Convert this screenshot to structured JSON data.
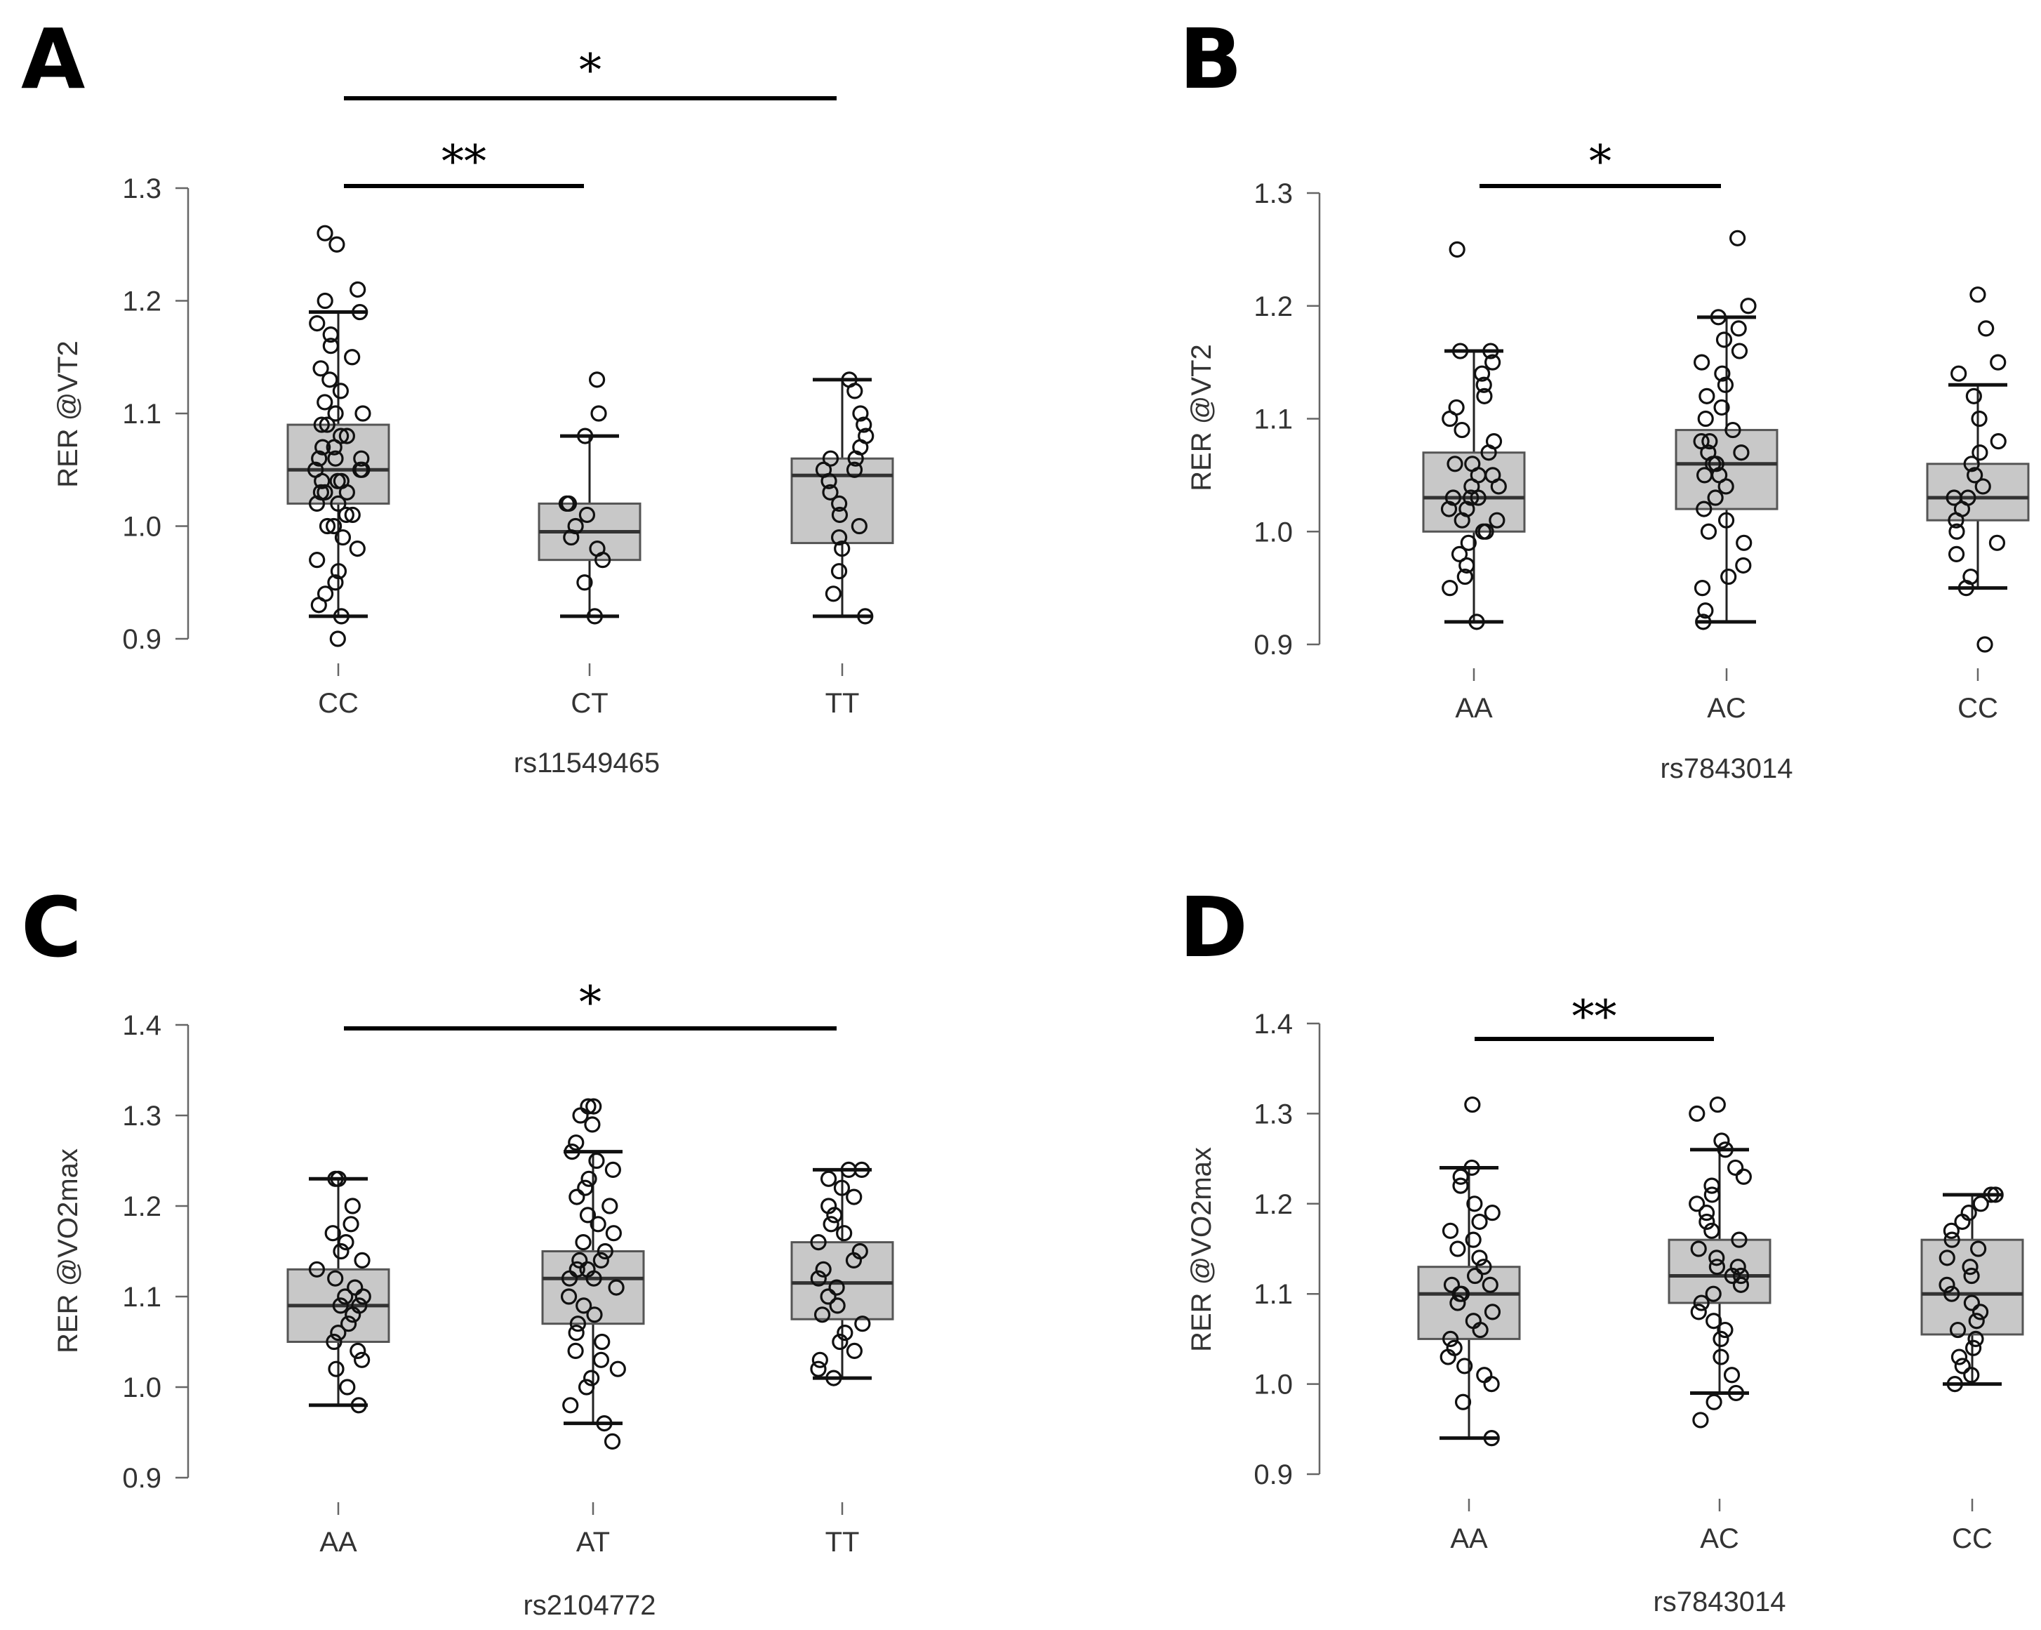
{
  "chart_data": [
    {
      "panel": "A",
      "type": "box",
      "ylabel": "RER @VT2",
      "xlabel": "rs11549465",
      "ylim": [
        0.9,
        1.3
      ],
      "yticks": [
        "0.9",
        "1.0",
        "1.1",
        "1.2",
        "1.3"
      ],
      "categories": [
        "CC",
        "CT",
        "TT"
      ],
      "boxes": [
        {
          "category": "CC",
          "min": 0.92,
          "q1": 1.02,
          "median": 1.05,
          "q3": 1.09,
          "max": 1.19,
          "points": [
            0.9,
            0.92,
            0.93,
            0.94,
            0.95,
            0.96,
            0.97,
            0.98,
            0.99,
            1.0,
            1.0,
            1.01,
            1.01,
            1.02,
            1.02,
            1.03,
            1.03,
            1.03,
            1.04,
            1.04,
            1.04,
            1.05,
            1.05,
            1.05,
            1.06,
            1.06,
            1.06,
            1.07,
            1.07,
            1.08,
            1.08,
            1.09,
            1.09,
            1.1,
            1.1,
            1.11,
            1.12,
            1.13,
            1.14,
            1.15,
            1.16,
            1.17,
            1.18,
            1.19,
            1.2,
            1.21,
            1.25,
            1.26
          ]
        },
        {
          "category": "CT",
          "min": 0.92,
          "q1": 0.97,
          "median": 0.995,
          "q3": 1.02,
          "max": 1.08,
          "points": [
            0.92,
            0.95,
            0.97,
            0.98,
            0.99,
            1.0,
            1.01,
            1.02,
            1.02,
            1.08,
            1.1,
            1.13
          ]
        },
        {
          "category": "TT",
          "min": 0.92,
          "q1": 0.985,
          "median": 1.045,
          "q3": 1.06,
          "max": 1.13,
          "points": [
            0.92,
            0.94,
            0.96,
            0.98,
            0.99,
            1.0,
            1.01,
            1.02,
            1.03,
            1.04,
            1.05,
            1.05,
            1.06,
            1.06,
            1.07,
            1.08,
            1.09,
            1.1,
            1.12,
            1.13
          ]
        }
      ],
      "significance": [
        {
          "from": "CC",
          "to": "TT",
          "label": "*"
        },
        {
          "from": "CC",
          "to": "CT",
          "label": "**"
        }
      ]
    },
    {
      "panel": "B",
      "type": "box",
      "ylabel": "RER @VT2",
      "xlabel": "rs7843014",
      "ylim": [
        0.9,
        1.3
      ],
      "yticks": [
        "0.9",
        "1.0",
        "1.1",
        "1.2",
        "1.3"
      ],
      "categories": [
        "AA",
        "AC",
        "CC"
      ],
      "boxes": [
        {
          "category": "AA",
          "min": 0.92,
          "q1": 1.0,
          "median": 1.03,
          "q3": 1.07,
          "max": 1.16,
          "points": [
            0.92,
            0.95,
            0.96,
            0.97,
            0.98,
            0.99,
            1.0,
            1.0,
            1.01,
            1.01,
            1.02,
            1.02,
            1.03,
            1.03,
            1.03,
            1.04,
            1.04,
            1.05,
            1.05,
            1.06,
            1.06,
            1.07,
            1.08,
            1.09,
            1.1,
            1.11,
            1.12,
            1.13,
            1.14,
            1.15,
            1.16,
            1.16,
            1.25
          ]
        },
        {
          "category": "AC",
          "min": 0.92,
          "q1": 1.02,
          "median": 1.06,
          "q3": 1.09,
          "max": 1.19,
          "points": [
            0.92,
            0.93,
            0.95,
            0.96,
            0.97,
            0.99,
            1.0,
            1.01,
            1.02,
            1.03,
            1.04,
            1.05,
            1.05,
            1.06,
            1.06,
            1.07,
            1.07,
            1.08,
            1.08,
            1.09,
            1.1,
            1.11,
            1.12,
            1.13,
            1.14,
            1.15,
            1.16,
            1.17,
            1.18,
            1.19,
            1.2,
            1.26
          ]
        },
        {
          "category": "CC",
          "min": 0.95,
          "q1": 1.01,
          "median": 1.03,
          "q3": 1.06,
          "max": 1.13,
          "points": [
            0.9,
            0.95,
            0.96,
            0.98,
            0.99,
            1.0,
            1.01,
            1.02,
            1.03,
            1.03,
            1.04,
            1.05,
            1.06,
            1.07,
            1.08,
            1.1,
            1.12,
            1.14,
            1.15,
            1.18,
            1.21
          ]
        }
      ],
      "significance": [
        {
          "from": "AA",
          "to": "AC",
          "label": "*"
        }
      ]
    },
    {
      "panel": "C",
      "type": "box",
      "ylabel": "RER @VO2max",
      "xlabel": "rs2104772",
      "ylim": [
        0.9,
        1.4
      ],
      "yticks": [
        "0.9",
        "1.0",
        "1.1",
        "1.2",
        "1.3",
        "1.4"
      ],
      "categories": [
        "AA",
        "AT",
        "TT"
      ],
      "boxes": [
        {
          "category": "AA",
          "min": 0.98,
          "q1": 1.05,
          "median": 1.09,
          "q3": 1.13,
          "max": 1.23,
          "points": [
            0.98,
            1.0,
            1.02,
            1.03,
            1.04,
            1.05,
            1.06,
            1.07,
            1.08,
            1.09,
            1.09,
            1.1,
            1.1,
            1.11,
            1.12,
            1.13,
            1.14,
            1.15,
            1.16,
            1.17,
            1.18,
            1.2,
            1.23,
            1.23
          ]
        },
        {
          "category": "AT",
          "min": 0.96,
          "q1": 1.07,
          "median": 1.12,
          "q3": 1.15,
          "max": 1.26,
          "points": [
            0.94,
            0.96,
            0.98,
            1.0,
            1.01,
            1.02,
            1.03,
            1.04,
            1.05,
            1.06,
            1.07,
            1.08,
            1.09,
            1.1,
            1.11,
            1.12,
            1.12,
            1.13,
            1.13,
            1.14,
            1.14,
            1.15,
            1.16,
            1.17,
            1.18,
            1.19,
            1.2,
            1.21,
            1.22,
            1.23,
            1.24,
            1.25,
            1.26,
            1.27,
            1.29,
            1.3,
            1.31,
            1.31
          ]
        },
        {
          "category": "TT",
          "min": 1.01,
          "q1": 1.075,
          "median": 1.115,
          "q3": 1.16,
          "max": 1.24,
          "points": [
            1.01,
            1.02,
            1.03,
            1.04,
            1.05,
            1.06,
            1.07,
            1.08,
            1.09,
            1.1,
            1.11,
            1.12,
            1.13,
            1.14,
            1.15,
            1.16,
            1.17,
            1.18,
            1.19,
            1.2,
            1.21,
            1.22,
            1.23,
            1.24,
            1.24
          ]
        }
      ],
      "significance": [
        {
          "from": "AA",
          "to": "TT",
          "label": "*"
        }
      ]
    },
    {
      "panel": "D",
      "type": "box",
      "ylabel": "RER @VO2max",
      "xlabel": "rs7843014",
      "ylim": [
        0.9,
        1.4
      ],
      "yticks": [
        "0.9",
        "1.0",
        "1.1",
        "1.2",
        "1.3",
        "1.4"
      ],
      "categories": [
        "AA",
        "AC",
        "CC"
      ],
      "boxes": [
        {
          "category": "AA",
          "min": 0.94,
          "q1": 1.05,
          "median": 1.1,
          "q3": 1.13,
          "max": 1.24,
          "points": [
            0.94,
            0.98,
            1.0,
            1.01,
            1.02,
            1.03,
            1.04,
            1.05,
            1.06,
            1.07,
            1.08,
            1.09,
            1.1,
            1.1,
            1.11,
            1.11,
            1.12,
            1.13,
            1.14,
            1.15,
            1.16,
            1.17,
            1.18,
            1.19,
            1.2,
            1.22,
            1.23,
            1.24,
            1.31
          ]
        },
        {
          "category": "AC",
          "min": 0.99,
          "q1": 1.09,
          "median": 1.12,
          "q3": 1.16,
          "max": 1.26,
          "points": [
            0.96,
            0.98,
            0.99,
            1.01,
            1.03,
            1.05,
            1.06,
            1.07,
            1.08,
            1.09,
            1.1,
            1.11,
            1.12,
            1.12,
            1.13,
            1.13,
            1.14,
            1.15,
            1.16,
            1.17,
            1.18,
            1.19,
            1.2,
            1.21,
            1.22,
            1.23,
            1.24,
            1.26,
            1.27,
            1.3,
            1.31
          ]
        },
        {
          "category": "CC",
          "min": 1.0,
          "q1": 1.055,
          "median": 1.1,
          "q3": 1.16,
          "max": 1.21,
          "points": [
            1.0,
            1.01,
            1.02,
            1.03,
            1.04,
            1.05,
            1.06,
            1.07,
            1.08,
            1.09,
            1.1,
            1.11,
            1.12,
            1.13,
            1.14,
            1.15,
            1.16,
            1.17,
            1.18,
            1.19,
            1.2,
            1.21,
            1.21
          ]
        }
      ],
      "significance": [
        {
          "from": "AA",
          "to": "AC",
          "label": "**"
        }
      ]
    }
  ]
}
